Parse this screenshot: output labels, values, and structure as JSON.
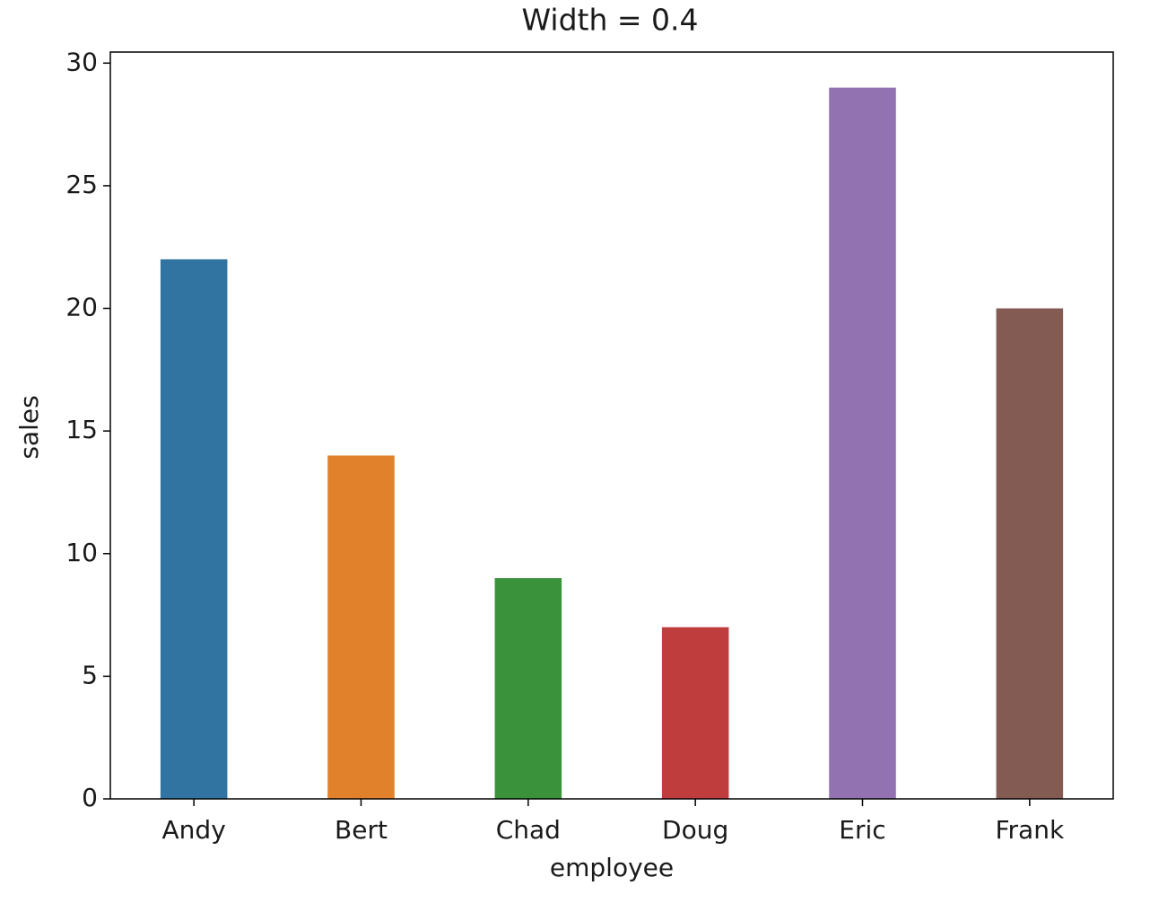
{
  "chart_data": {
    "type": "bar",
    "title": "Width = 0.4",
    "x_label": "employee",
    "y_label": "sales",
    "categories": [
      "Andy",
      "Bert",
      "Chad",
      "Doug",
      "Eric",
      "Frank"
    ],
    "values": [
      22,
      14,
      9,
      7,
      29,
      20
    ],
    "colors": [
      "#3274a1",
      "#e1812c",
      "#3a923a",
      "#c03d3e",
      "#9372b2",
      "#845b53"
    ],
    "bar_width": 0.4,
    "ylim": [
      0,
      30.45
    ],
    "yticks": [
      0,
      5,
      10,
      15,
      20,
      25,
      30
    ],
    "grid": false
  }
}
